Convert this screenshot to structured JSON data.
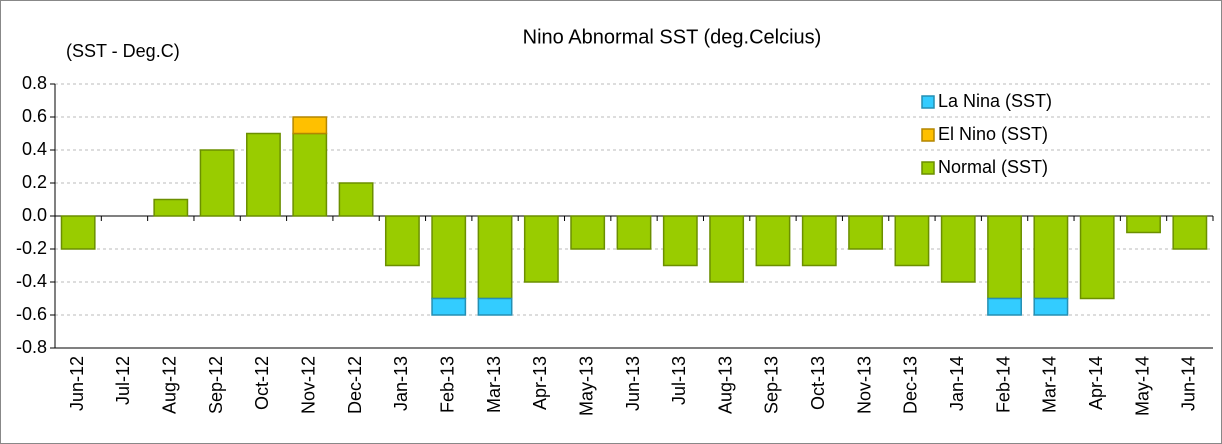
{
  "chart_data": {
    "type": "stacked-bar",
    "title": "Nino Abnormal SST (deg.Celcius)",
    "y_label": "(SST - Deg.C)",
    "categories": [
      "Jun-12",
      "Jul-12",
      "Aug-12",
      "Sep-12",
      "Oct-12",
      "Nov-12",
      "Dec-12",
      "Jan-13",
      "Feb-13",
      "Mar-13",
      "Apr-13",
      "May-13",
      "Jun-13",
      "Jul-13",
      "Aug-13",
      "Sep-13",
      "Oct-13",
      "Nov-13",
      "Dec-13",
      "Jan-14",
      "Feb-14",
      "Mar-14",
      "Apr-14",
      "May-14",
      "Jun-14"
    ],
    "series": [
      {
        "name": "Normal (SST)",
        "color": "#99cc00",
        "values": [
          -0.2,
          0,
          0.1,
          0.4,
          0.5,
          0.5,
          0.2,
          -0.3,
          -0.5,
          -0.5,
          -0.4,
          -0.2,
          -0.2,
          -0.3,
          -0.4,
          -0.3,
          -0.3,
          -0.2,
          -0.3,
          -0.4,
          -0.5,
          -0.5,
          -0.5,
          -0.1,
          -0.2
        ]
      },
      {
        "name": "El Nino (SST)",
        "color": "#ffc000",
        "values": [
          0,
          0,
          0,
          0,
          0,
          0.1,
          0,
          0,
          0,
          0,
          0,
          0,
          0,
          0,
          0,
          0,
          0,
          0,
          0,
          0,
          0,
          0,
          0,
          0,
          0
        ]
      },
      {
        "name": "La Nina (SST)",
        "color": "#33ccff",
        "values": [
          0,
          0,
          0,
          0,
          0,
          0,
          0,
          0,
          -0.1,
          -0.1,
          0,
          0,
          0,
          0,
          0,
          0,
          0,
          0,
          0,
          0,
          -0.1,
          -0.1,
          0,
          0,
          0
        ]
      }
    ],
    "ylim": [
      -0.8,
      0.8
    ],
    "yticks": [
      0.8,
      0.6,
      0.4,
      0.2,
      {
        "value": 0,
        "label": "0.0"
      },
      -0.2,
      -0.4,
      -0.6,
      -0.8
    ],
    "grid": true,
    "legend": "top-right"
  }
}
